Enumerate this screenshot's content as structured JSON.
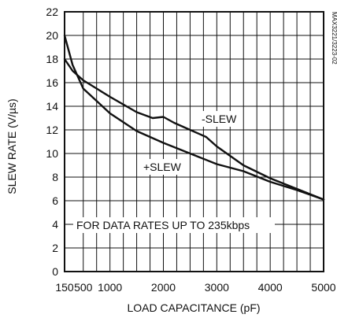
{
  "chart_data": {
    "type": "line",
    "title": "",
    "xlabel": "LOAD CAPACITANCE (pF)",
    "ylabel": "SLEW RATE (V/µs)",
    "xlim": [
      150,
      5000
    ],
    "ylim": [
      0,
      22
    ],
    "x_ticks": [
      150,
      500,
      1000,
      2000,
      3000,
      4000,
      5000
    ],
    "y_ticks": [
      0,
      2,
      4,
      6,
      8,
      10,
      12,
      14,
      16,
      18,
      20,
      22
    ],
    "x_tick_labels": [
      "150",
      "500",
      "1000",
      "2000",
      "3000",
      "4000",
      "5000"
    ],
    "y_tick_labels": [
      "0",
      "2",
      "4",
      "6",
      "8",
      "10",
      "12",
      "14",
      "16",
      "18",
      "20",
      "22"
    ],
    "grid": true,
    "series": [
      {
        "name": "-SLEW",
        "color": "#111111",
        "x": [
          150,
          300,
          500,
          1000,
          1500,
          1800,
          2000,
          2200,
          2500,
          2800,
          3000,
          3500,
          4000,
          4500,
          5000
        ],
        "y": [
          18,
          17,
          16.2,
          14.8,
          13.5,
          13.0,
          13.1,
          12.6,
          12.0,
          11.4,
          10.6,
          9.0,
          7.9,
          7.0,
          6.1
        ]
      },
      {
        "name": "+SLEW",
        "color": "#111111",
        "x": [
          150,
          300,
          500,
          1000,
          1500,
          2000,
          2500,
          3000,
          3500,
          4000,
          4500,
          5000
        ],
        "y": [
          20,
          17.5,
          15.5,
          13.4,
          11.9,
          10.9,
          10.0,
          9.1,
          8.5,
          7.6,
          6.9,
          6.1
        ]
      }
    ],
    "annotations": [
      {
        "text": "-SLEW"
      },
      {
        "text": "+SLEW"
      },
      {
        "text": "FOR DATA RATES UP TO 235kbps"
      }
    ],
    "figure_code": "MAX3221/3223-02"
  }
}
